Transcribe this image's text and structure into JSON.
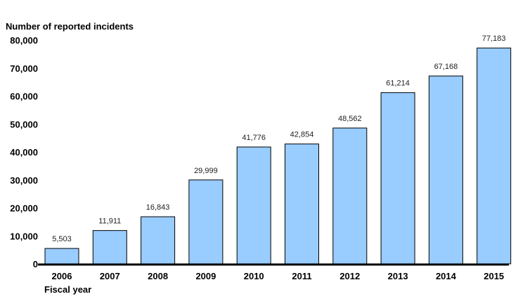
{
  "chart_data": {
    "type": "bar",
    "ylabel": "Number of reported incidents",
    "xlabel": "Fiscal year",
    "categories": [
      "2006",
      "2007",
      "2008",
      "2009",
      "2010",
      "2011",
      "2012",
      "2013",
      "2014",
      "2015"
    ],
    "values": [
      5503,
      11911,
      16843,
      29999,
      41776,
      42854,
      48562,
      61214,
      67168,
      77183
    ],
    "data_labels": [
      "5,503",
      "11,911",
      "16,843",
      "29,999",
      "41,776",
      "42,854",
      "48,562",
      "61,214",
      "67,168",
      "77,183"
    ],
    "y_ticks": [
      "0",
      "10,000",
      "20,000",
      "30,000",
      "40,000",
      "50,000",
      "60,000",
      "70,000",
      "80,000"
    ],
    "y_tick_values": [
      0,
      10000,
      20000,
      30000,
      40000,
      50000,
      60000,
      70000,
      80000
    ],
    "ylim": [
      0,
      80000
    ],
    "grid": false,
    "legend": "none",
    "colors": {
      "bar_fill": "#99ccff",
      "bar_stroke": "#000000",
      "axis": "#000000"
    }
  }
}
